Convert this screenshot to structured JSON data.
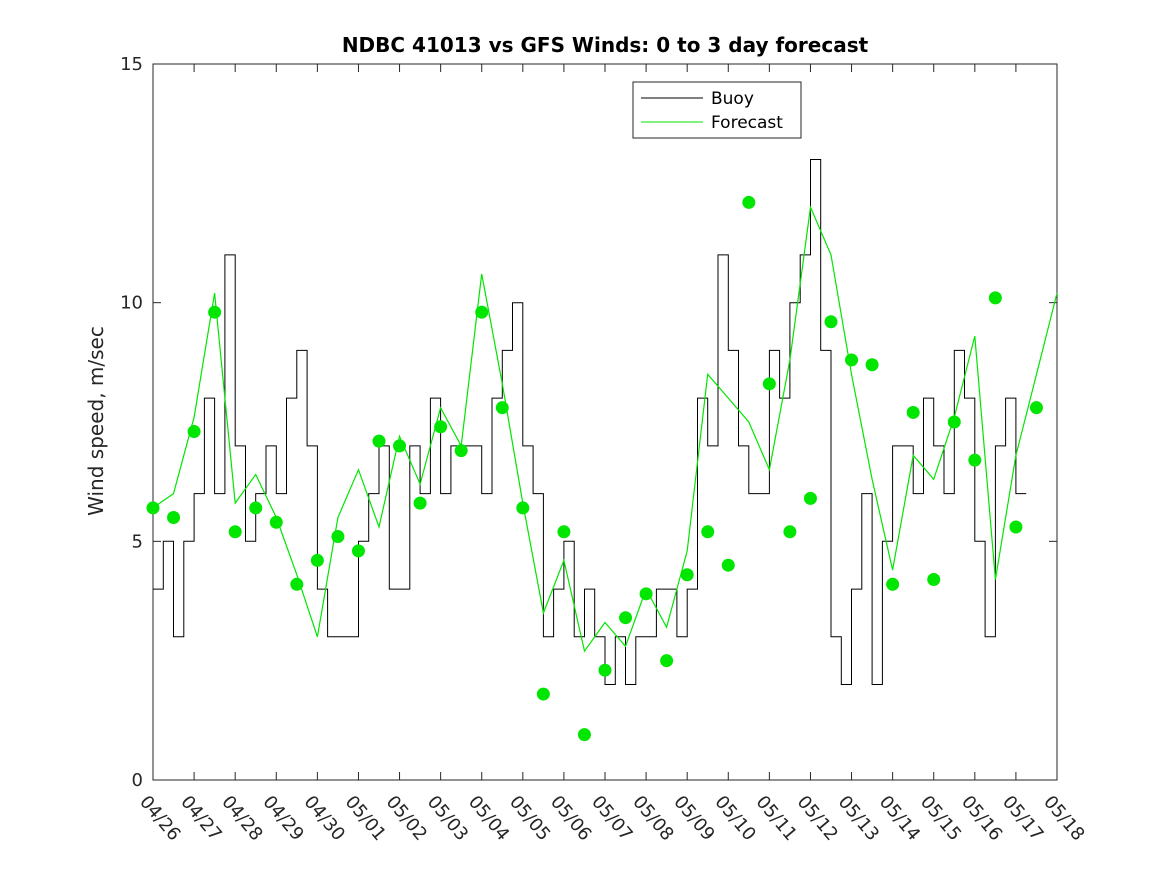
{
  "chart_data": {
    "type": "line",
    "title": "NDBC 41013 vs GFS Winds: 0 to 3 day forecast",
    "xlabel": "",
    "ylabel": "Wind speed, m/sec",
    "ylim": [
      0,
      15
    ],
    "xlim": [
      0,
      22
    ],
    "yticks": [
      "0",
      "5",
      "10",
      "15"
    ],
    "xticks": [
      "04/26",
      "04/27",
      "04/28",
      "04/29",
      "04/30",
      "05/01",
      "05/02",
      "05/03",
      "05/04",
      "05/05",
      "05/06",
      "05/07",
      "05/08",
      "05/09",
      "05/10",
      "05/11",
      "05/12",
      "05/13",
      "05/14",
      "05/15",
      "05/16",
      "05/17",
      "05/18"
    ],
    "grid": false,
    "legend": {
      "location": "top-center",
      "entries": [
        "Buoy",
        "Forecast"
      ]
    },
    "colors": {
      "buoy": "#000000",
      "forecast": "#00e600",
      "markers": "#00e600"
    },
    "series": [
      {
        "name": "Buoy",
        "style": "step",
        "x": [
          0.0,
          0.25,
          0.5,
          0.75,
          1.0,
          1.25,
          1.5,
          1.75,
          2.0,
          2.25,
          2.5,
          2.75,
          3.0,
          3.25,
          3.5,
          3.75,
          4.0,
          4.25,
          4.5,
          4.75,
          5.0,
          5.25,
          5.5,
          5.75,
          6.0,
          6.25,
          6.5,
          6.75,
          7.0,
          7.25,
          7.5,
          7.75,
          8.0,
          8.25,
          8.5,
          8.75,
          9.0,
          9.25,
          9.5,
          9.75,
          10.0,
          10.25,
          10.5,
          10.75,
          11.0,
          11.25,
          11.5,
          11.75,
          12.0,
          12.25,
          12.5,
          12.75,
          13.0,
          13.25,
          13.5,
          13.75,
          14.0,
          14.25,
          14.5,
          14.75,
          15.0,
          15.25,
          15.5,
          15.75,
          16.0,
          16.25,
          16.5,
          16.75,
          17.0,
          17.25,
          17.5,
          17.75,
          18.0,
          18.25,
          18.5,
          18.75,
          19.0,
          19.25,
          19.5,
          19.75,
          20.0,
          20.25,
          20.5,
          20.75,
          21.0
        ],
        "values": [
          4,
          5,
          3,
          5,
          6,
          8,
          6,
          11,
          7,
          5,
          6,
          7,
          6,
          8,
          9,
          7,
          4,
          3,
          3,
          3,
          5,
          6,
          7,
          4,
          4,
          7,
          6,
          8,
          6,
          7,
          7,
          7,
          6,
          8,
          9,
          10,
          7,
          6,
          3,
          4,
          5,
          3,
          4,
          3,
          2,
          3,
          2,
          3,
          3,
          4,
          4,
          3,
          4,
          8,
          7,
          11,
          9,
          7,
          6,
          6,
          9,
          8,
          10,
          11,
          13,
          9,
          3,
          2,
          4,
          6,
          2,
          5,
          7,
          7,
          6,
          8,
          7,
          6,
          9,
          8,
          5,
          3,
          7,
          8,
          6
        ]
      },
      {
        "name": "Forecast",
        "x": [
          0.0,
          0.5,
          1.0,
          1.5,
          2.0,
          2.5,
          3.0,
          3.5,
          4.0,
          4.5,
          5.0,
          5.5,
          6.0,
          6.5,
          7.0,
          7.5,
          8.0,
          8.5,
          9.0,
          9.5,
          10.0,
          10.5,
          11.0,
          11.5,
          12.0,
          12.5,
          13.0,
          13.5,
          14.0,
          14.5,
          15.0,
          15.5,
          16.0,
          16.5,
          17.0,
          17.5,
          18.0,
          18.5,
          19.0,
          19.5,
          20.0,
          20.5,
          21.0,
          21.5,
          22.0
        ],
        "values": [
          5.7,
          6.0,
          7.6,
          10.2,
          5.8,
          6.4,
          5.5,
          4.3,
          3.0,
          5.5,
          6.5,
          5.3,
          7.2,
          6.2,
          7.8,
          7.0,
          10.6,
          8.3,
          5.8,
          3.5,
          4.6,
          2.7,
          3.3,
          2.8,
          4.0,
          3.2,
          4.8,
          8.5,
          8.0,
          7.5,
          6.5,
          8.8,
          12.0,
          11.0,
          8.5,
          6.3,
          4.4,
          6.8,
          6.3,
          7.6,
          9.3,
          4.2,
          6.8,
          8.5,
          10.2
        ]
      }
    ],
    "forecast_points": {
      "x": [
        -0.5,
        0.0,
        0.5,
        1.0,
        1.5,
        2.0,
        2.5,
        3.0,
        3.5,
        4.0,
        4.5,
        5.0,
        5.5,
        6.0,
        6.5,
        7.0,
        7.5,
        8.0,
        8.5,
        9.0,
        9.5,
        10.0,
        10.5,
        11.0,
        11.5,
        12.0,
        12.5,
        13.0,
        13.5,
        14.0,
        14.5,
        15.0,
        15.5,
        16.0,
        16.5,
        17.0,
        17.5,
        18.0,
        18.5,
        19.0,
        19.5,
        20.0,
        20.5,
        21.0
      ],
      "values": [
        5.7,
        5.5,
        7.3,
        9.8,
        5.2,
        5.7,
        5.4,
        4.1,
        4.6,
        5.1,
        4.8,
        7.1,
        7.0,
        5.8,
        7.4,
        6.9,
        9.8,
        7.8,
        5.7,
        1.8,
        5.2,
        0.95,
        2.3,
        3.4,
        3.9,
        2.5,
        4.3,
        5.2,
        4.5,
        12.1,
        8.3,
        5.2,
        5.9,
        9.6,
        8.8,
        8.7,
        4.1,
        7.7,
        4.2,
        7.5,
        6.7,
        10.1,
        5.3,
        7.8
      ]
    }
  }
}
